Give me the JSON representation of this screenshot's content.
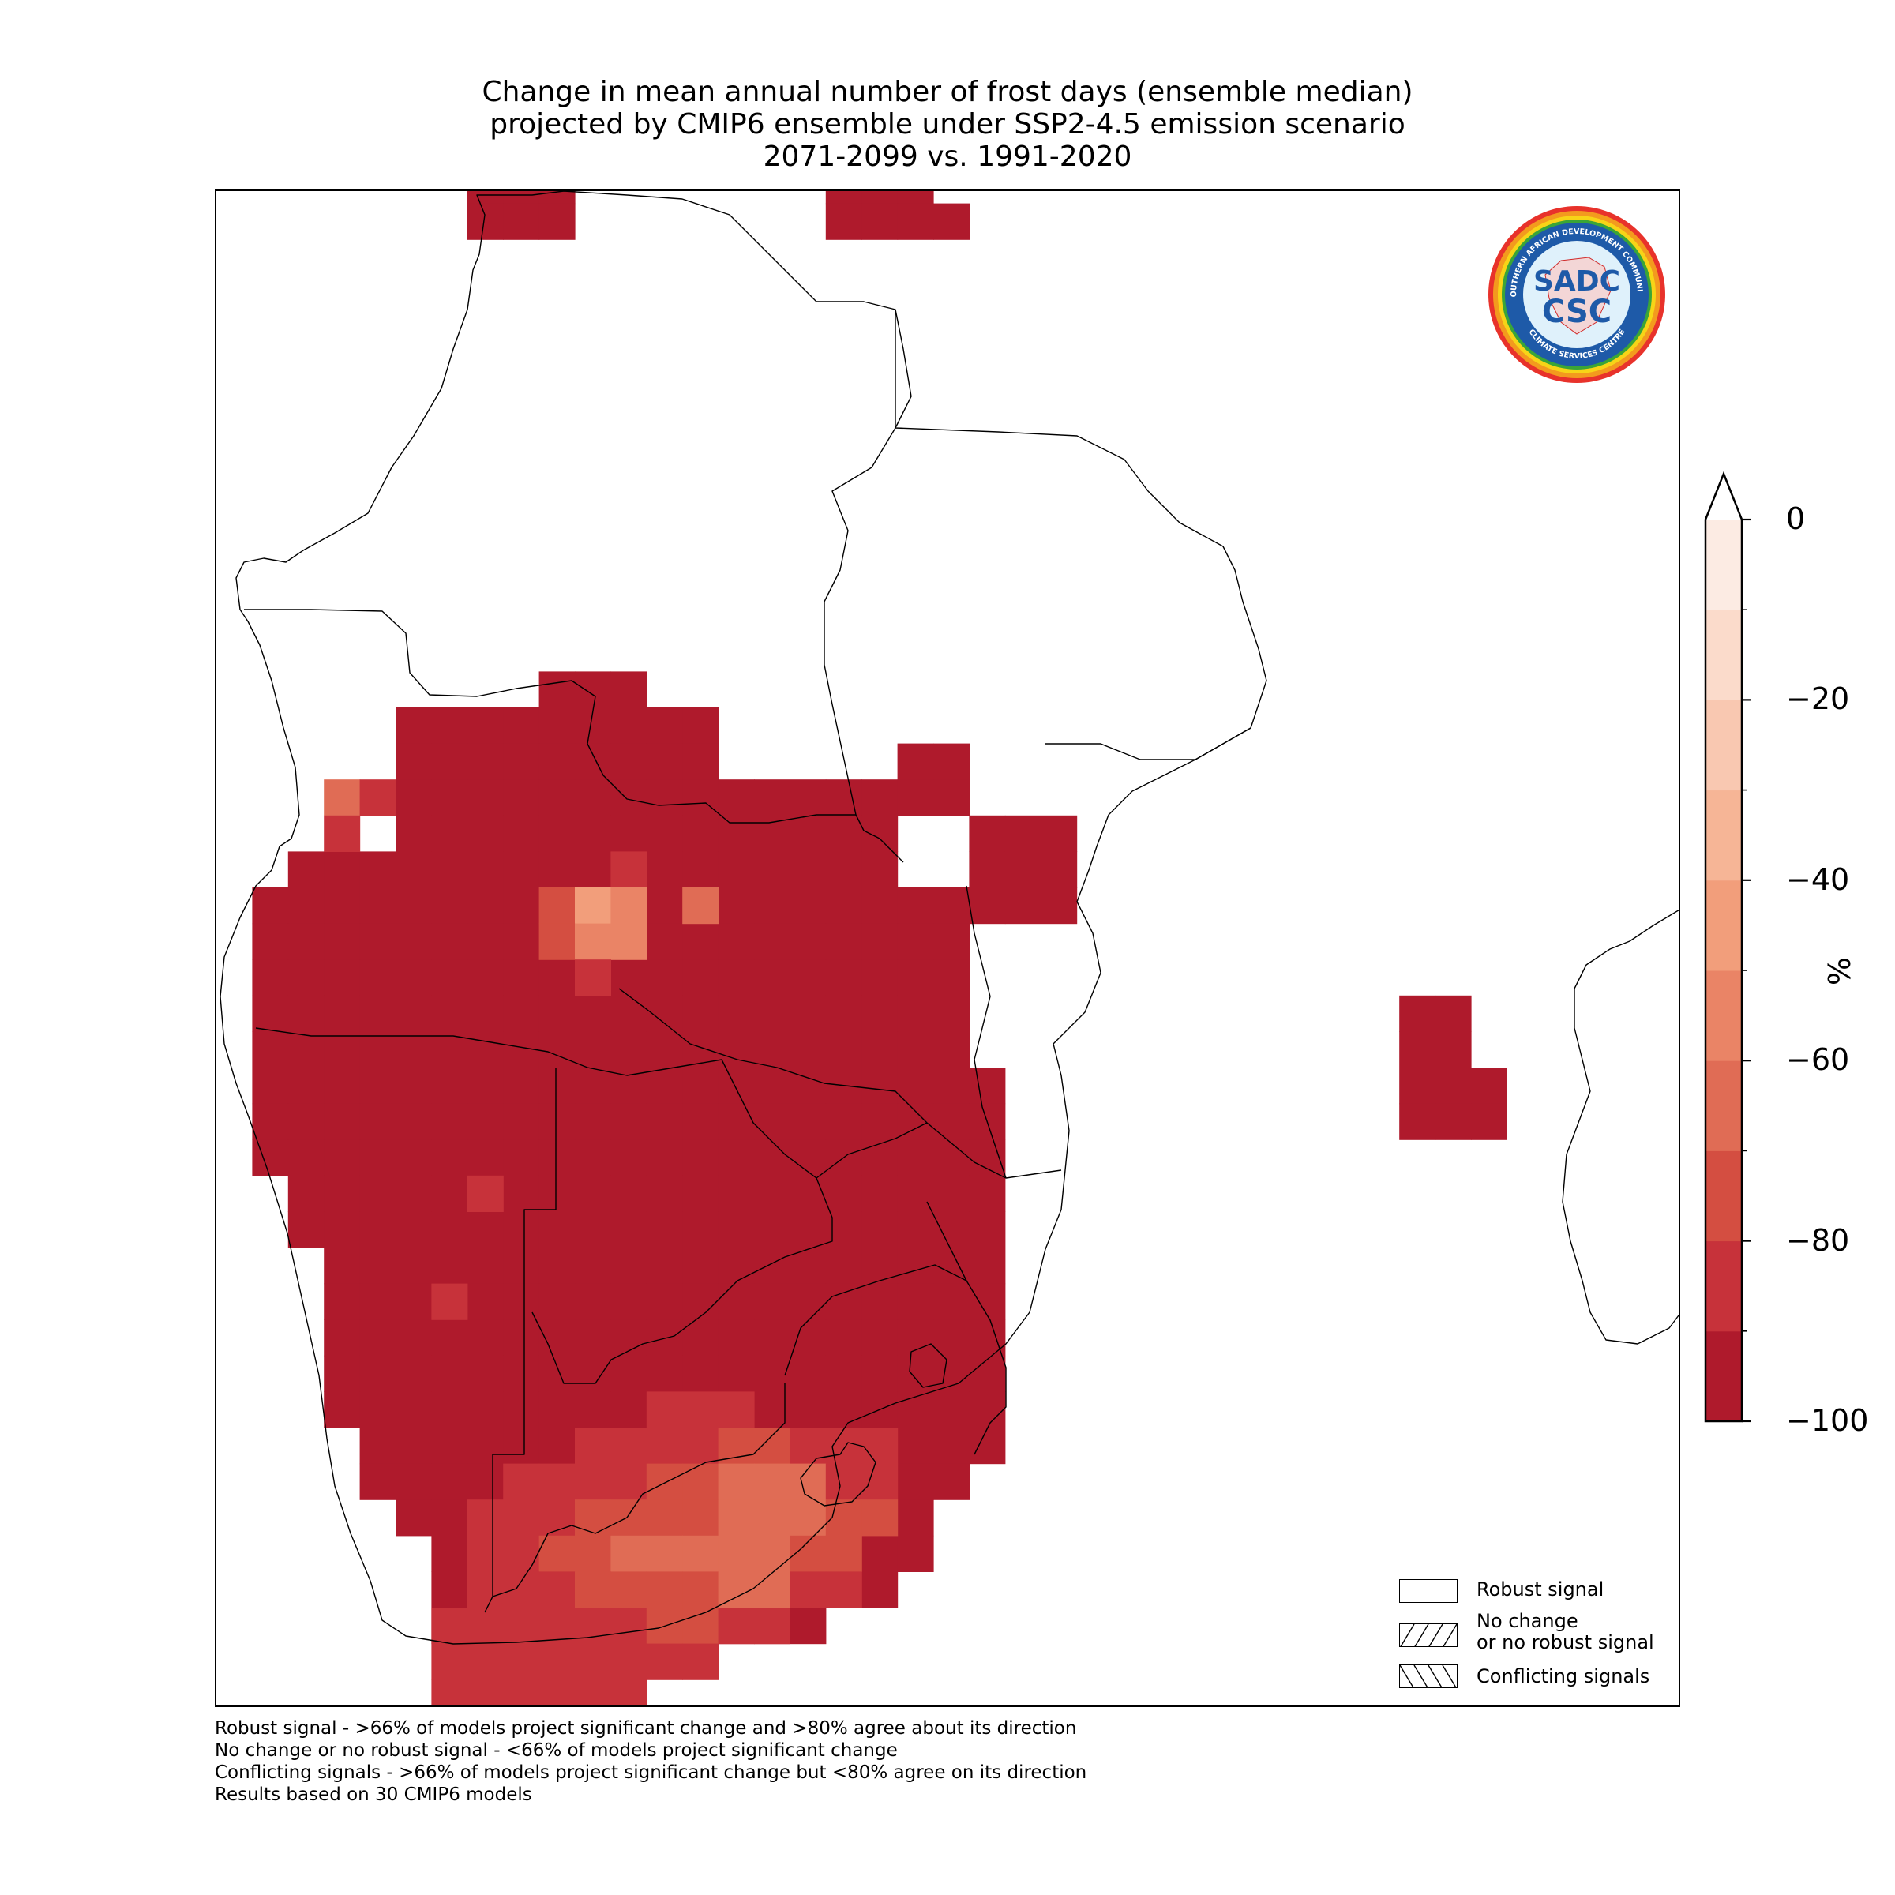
{
  "title_lines": [
    "Change in mean annual number of frost days (ensemble median)",
    "projected by CMIP6 ensemble under SSP2-4.5 emission scenario",
    "2071-2099 vs. 1991-2020"
  ],
  "colorbar": {
    "unit": "%",
    "min": -100,
    "max": 0,
    "step": 10,
    "extend": "max",
    "tick_values": [
      0,
      -20,
      -40,
      -60,
      -80,
      -100
    ],
    "tick_labels": [
      "0",
      "−20",
      "−40",
      "−60",
      "−80",
      "−100"
    ],
    "colors": [
      "#af1a2c",
      "#c7323a",
      "#d44e41",
      "#e06c55",
      "#ea8466",
      "#f29e7b",
      "#f6b596",
      "#f9c8b1",
      "#fbdbcb",
      "#fcebe3"
    ]
  },
  "legend": {
    "items": [
      {
        "label_lines": [
          "Robust signal"
        ],
        "pattern": "none"
      },
      {
        "label_lines": [
          "No change",
          "or no robust signal"
        ],
        "pattern": "forward-hatch"
      },
      {
        "label_lines": [
          "Conflicting signals"
        ],
        "pattern": "back-hatch"
      }
    ]
  },
  "footnotes": [
    "Robust signal - >66% of models project significant change and >80% agree about its direction",
    "No change or no robust signal - <66% of models project significant change",
    "Conflicting signals - >66% of models project significant change but <80% agree on its direction",
    "Results based on 30 CMIP6 models"
  ],
  "logo": {
    "top_text": "SOUTHERN AFRICAN DEVELOPMENT COMMUNITY",
    "bottom_text": "CLIMATE SERVICES CENTRE",
    "mark_top": "SADC",
    "mark_bottom": "CSC"
  },
  "map": {
    "base_color": "#af1a2c",
    "highlight_cells": [
      {
        "col": 3,
        "row": 17,
        "value": -65
      },
      {
        "col": 4,
        "row": 17,
        "value": -85
      },
      {
        "col": 3,
        "row": 18,
        "value": -85
      },
      {
        "col": 11,
        "row": 19,
        "value": -85
      },
      {
        "col": 9,
        "row": 20,
        "value": -75
      },
      {
        "col": 10,
        "row": 20,
        "value": -45
      },
      {
        "col": 11,
        "row": 20,
        "value": -55
      },
      {
        "col": 13,
        "row": 20,
        "value": -65
      },
      {
        "col": 9,
        "row": 21,
        "value": -75
      },
      {
        "col": 10,
        "row": 21,
        "value": -55
      },
      {
        "col": 11,
        "row": 21,
        "value": -55
      },
      {
        "col": 10,
        "row": 22,
        "value": -85
      },
      {
        "col": 7,
        "row": 28,
        "value": -85
      },
      {
        "col": 6,
        "row": 31,
        "value": -85
      }
    ]
  }
}
